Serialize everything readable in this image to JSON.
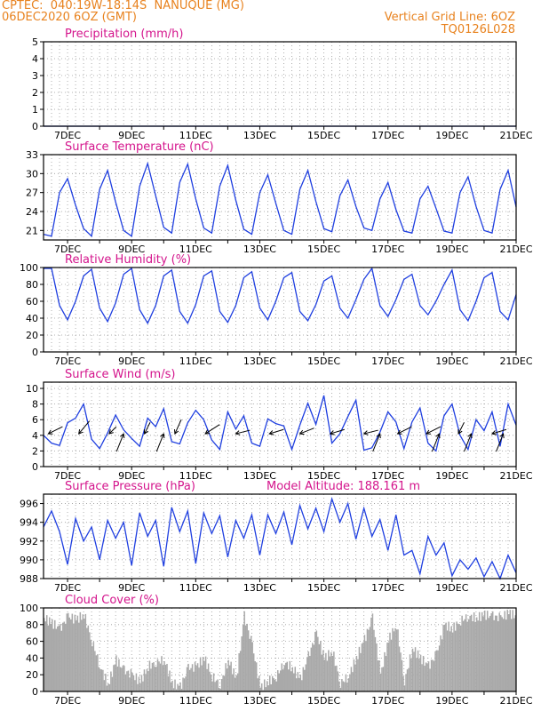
{
  "meta": {
    "header_color": "#e8821e",
    "title_color": "#d4148c",
    "series_color": "#1f3fe0",
    "cloud_color": "#a9a9a9",
    "wind_arrow_color": "#000000",
    "grid_color": "#9a9a9a"
  },
  "header": {
    "line1": "CPTEC:  040:19W-18:14S  NANUQUE (MG)",
    "line2": "06DEC2020 6OZ (GMT)",
    "grid_note": "Vertical Grid Line: 6OZ",
    "code": "TQ0126L028"
  },
  "x_axis": {
    "ticks": [
      "7DEC",
      "9DEC",
      "11DEC",
      "13DEC",
      "15DEC",
      "17DEC",
      "19DEC",
      "21DEC"
    ]
  },
  "chart_data": [
    {
      "type": "line",
      "title": "Precipitation (mm/h)",
      "ylim": [
        0,
        5
      ],
      "yticks": [
        0,
        1,
        2,
        3,
        4,
        5
      ],
      "grid": true,
      "x": [
        6.25,
        21.0
      ],
      "series": [
        {
          "values": [
            0,
            0
          ]
        }
      ]
    },
    {
      "type": "line",
      "title": "Surface Temperature (nC)",
      "ylim": [
        19.5,
        33
      ],
      "yticks": [
        21,
        24,
        27,
        30,
        33
      ],
      "grid": true,
      "x": [
        6.25,
        6.5,
        6.75,
        7.0,
        7.25,
        7.5,
        7.75,
        8.0,
        8.25,
        8.5,
        8.75,
        9.0,
        9.25,
        9.5,
        9.75,
        10.0,
        10.25,
        10.5,
        10.75,
        11.0,
        11.25,
        11.5,
        11.75,
        12.0,
        12.25,
        12.5,
        12.75,
        13.0,
        13.25,
        13.5,
        13.75,
        14.0,
        14.25,
        14.5,
        14.75,
        15.0,
        15.25,
        15.5,
        15.75,
        16.0,
        16.25,
        16.5,
        16.75,
        17.0,
        17.25,
        17.5,
        17.75,
        18.0,
        18.25,
        18.5,
        18.75,
        19.0,
        19.25,
        19.5,
        19.75,
        20.0,
        20.25,
        20.5,
        20.75,
        21.0
      ],
      "series": [
        {
          "values": [
            20.4,
            20.1,
            27.0,
            29.2,
            25.0,
            21.3,
            20.1,
            27.5,
            30.5,
            25.5,
            21.0,
            20.1,
            28.0,
            31.6,
            26.5,
            21.5,
            20.6,
            28.6,
            31.5,
            26.0,
            21.4,
            20.6,
            28.0,
            31.3,
            25.8,
            21.2,
            20.4,
            27.0,
            29.8,
            25.3,
            21.0,
            20.4,
            27.5,
            30.5,
            25.6,
            21.3,
            20.8,
            26.5,
            29.0,
            24.8,
            21.4,
            21.0,
            26.0,
            28.6,
            24.3,
            20.9,
            20.6,
            26.0,
            28.0,
            24.5,
            20.9,
            20.6,
            27.0,
            29.5,
            24.8,
            21.0,
            20.6,
            27.5,
            30.5,
            24.7
          ]
        }
      ]
    },
    {
      "type": "line",
      "title": "Relative Humidity (%)",
      "ylim": [
        0,
        100
      ],
      "yticks": [
        0,
        20,
        40,
        60,
        80,
        100
      ],
      "grid": true,
      "x": [
        6.25,
        6.5,
        6.75,
        7.0,
        7.25,
        7.5,
        7.75,
        8.0,
        8.25,
        8.5,
        8.75,
        9.0,
        9.25,
        9.5,
        9.75,
        10.0,
        10.25,
        10.5,
        10.75,
        11.0,
        11.25,
        11.5,
        11.75,
        12.0,
        12.25,
        12.5,
        12.75,
        13.0,
        13.25,
        13.5,
        13.75,
        14.0,
        14.25,
        14.5,
        14.75,
        15.0,
        15.25,
        15.5,
        15.75,
        16.0,
        16.25,
        16.5,
        16.75,
        17.0,
        17.25,
        17.5,
        17.75,
        18.0,
        18.25,
        18.5,
        18.75,
        19.0,
        19.25,
        19.5,
        19.75,
        20.0,
        20.25,
        20.5,
        20.75,
        21.0
      ],
      "series": [
        {
          "values": [
            99,
            99,
            55,
            38,
            60,
            90,
            98,
            52,
            36,
            58,
            92,
            99,
            50,
            34,
            55,
            90,
            97,
            48,
            34,
            56,
            90,
            96,
            48,
            35,
            55,
            88,
            95,
            52,
            38,
            60,
            88,
            94,
            48,
            37,
            56,
            84,
            90,
            52,
            40,
            62,
            86,
            99,
            55,
            42,
            62,
            86,
            92,
            55,
            44,
            60,
            80,
            97,
            50,
            37,
            60,
            88,
            94,
            48,
            38,
            68
          ]
        }
      ]
    },
    {
      "type": "line",
      "title": "Surface Wind (m/s)",
      "ylim": [
        0,
        10.8
      ],
      "yticks": [
        0,
        2,
        4,
        6,
        8,
        10
      ],
      "grid": true,
      "x": [
        6.25,
        6.5,
        6.75,
        7.0,
        7.25,
        7.5,
        7.75,
        8.0,
        8.25,
        8.5,
        8.75,
        9.0,
        9.25,
        9.5,
        9.75,
        10.0,
        10.25,
        10.5,
        10.75,
        11.0,
        11.25,
        11.5,
        11.75,
        12.0,
        12.25,
        12.5,
        12.75,
        13.0,
        13.25,
        13.5,
        13.75,
        14.0,
        14.25,
        14.5,
        14.75,
        15.0,
        15.25,
        15.5,
        15.75,
        16.0,
        16.25,
        16.5,
        16.75,
        17.0,
        17.25,
        17.5,
        17.75,
        18.0,
        18.25,
        18.5,
        18.75,
        19.0,
        19.25,
        19.5,
        19.75,
        20.0,
        20.25,
        20.5,
        20.75,
        21.0
      ],
      "series": [
        {
          "values": [
            4.0,
            3.0,
            2.7,
            5.6,
            6.2,
            8.0,
            3.5,
            2.3,
            4.3,
            6.6,
            4.7,
            3.6,
            2.6,
            6.2,
            5.1,
            7.4,
            3.2,
            2.9,
            5.6,
            7.2,
            6.0,
            3.4,
            2.2,
            7.0,
            4.8,
            6.5,
            3.0,
            2.6,
            6.1,
            5.5,
            5.2,
            2.2,
            5.3,
            8.1,
            5.4,
            9.1,
            3.0,
            4.2,
            6.4,
            8.5,
            2.1,
            2.4,
            4.4,
            7.0,
            5.7,
            2.3,
            5.7,
            7.5,
            3.0,
            2.0,
            6.5,
            8.0,
            4.0,
            2.2,
            6.0,
            4.6,
            7.0,
            2.6,
            8.0,
            5.3
          ]
        }
      ],
      "arrows": [
        {
          "x": 6.4,
          "u": 2.0,
          "v": 1.0
        },
        {
          "x": 7.35,
          "u": 1.5,
          "v": 1.8
        },
        {
          "x": 8.3,
          "u": 1.0,
          "v": 1.0
        },
        {
          "x": 8.75,
          "u": -1.0,
          "v": -2.5
        },
        {
          "x": 9.4,
          "u": 0.8,
          "v": 1.6
        },
        {
          "x": 10.0,
          "u": -1.0,
          "v": -2.5
        },
        {
          "x": 10.35,
          "u": 0.9,
          "v": 2.0
        },
        {
          "x": 11.3,
          "u": 2.0,
          "v": 1.3
        },
        {
          "x": 12.25,
          "u": 2.0,
          "v": 0.5
        },
        {
          "x": 13.3,
          "u": 2.0,
          "v": 0.6
        },
        {
          "x": 14.25,
          "u": 2.0,
          "v": 0.8
        },
        {
          "x": 15.2,
          "u": 2.0,
          "v": 0.6
        },
        {
          "x": 16.25,
          "u": 2.0,
          "v": 0.5
        },
        {
          "x": 16.75,
          "u": -1.0,
          "v": -2.5
        },
        {
          "x": 17.3,
          "u": 2.0,
          "v": 1.0
        },
        {
          "x": 18.2,
          "u": 2.0,
          "v": 1.0
        },
        {
          "x": 18.6,
          "u": -1.0,
          "v": -2.5
        },
        {
          "x": 19.2,
          "u": 0.8,
          "v": 1.6
        },
        {
          "x": 19.6,
          "u": -1.0,
          "v": -2.5
        },
        {
          "x": 20.25,
          "u": 2.0,
          "v": 0.6
        },
        {
          "x": 20.6,
          "u": -1.0,
          "v": -2.5
        }
      ]
    },
    {
      "type": "line",
      "title": "Surface Pressure (hPa)",
      "annotation": "Model Altitude: 188.161 m",
      "ylim": [
        988,
        997
      ],
      "yticks": [
        988,
        990,
        992,
        994,
        996
      ],
      "grid": true,
      "x": [
        6.25,
        6.5,
        6.75,
        7.0,
        7.25,
        7.5,
        7.75,
        8.0,
        8.25,
        8.5,
        8.75,
        9.0,
        9.25,
        9.5,
        9.75,
        10.0,
        10.25,
        10.5,
        10.75,
        11.0,
        11.25,
        11.5,
        11.75,
        12.0,
        12.25,
        12.5,
        12.75,
        13.0,
        13.25,
        13.5,
        13.75,
        14.0,
        14.25,
        14.5,
        14.75,
        15.0,
        15.25,
        15.5,
        15.75,
        16.0,
        16.25,
        16.5,
        16.75,
        17.0,
        17.25,
        17.5,
        17.75,
        18.0,
        18.25,
        18.5,
        18.75,
        19.0,
        19.25,
        19.5,
        19.75,
        20.0,
        20.25,
        20.5,
        20.75,
        21.0
      ],
      "series": [
        {
          "values": [
            993.5,
            995.2,
            993.0,
            989.5,
            994.4,
            992.0,
            993.5,
            990.0,
            994.2,
            992.3,
            994.0,
            989.4,
            995.0,
            992.5,
            994.2,
            989.3,
            995.6,
            993.0,
            995.2,
            989.6,
            995.0,
            992.8,
            994.7,
            990.3,
            994.2,
            992.3,
            994.8,
            990.5,
            994.8,
            992.8,
            995.1,
            991.6,
            995.8,
            993.3,
            995.5,
            993.0,
            996.5,
            994.0,
            996.0,
            992.2,
            995.5,
            992.5,
            994.3,
            991.0,
            994.8,
            990.5,
            991.0,
            988.5,
            992.5,
            990.5,
            991.8,
            988.3,
            990.0,
            989.0,
            990.2,
            988.2,
            989.8,
            988.0,
            990.5,
            988.6
          ]
        }
      ]
    },
    {
      "type": "bar",
      "title": "Cloud Cover (%)",
      "ylim": [
        0,
        100
      ],
      "yticks": [
        0,
        20,
        40,
        60,
        80,
        100
      ],
      "grid": true,
      "x": [
        6.25,
        6.5,
        6.75,
        7.0,
        7.25,
        7.5,
        7.75,
        8.0,
        8.25,
        8.5,
        8.75,
        9.0,
        9.25,
        9.5,
        9.75,
        10.0,
        10.25,
        10.5,
        10.75,
        11.0,
        11.25,
        11.5,
        11.75,
        12.0,
        12.25,
        12.5,
        12.75,
        13.0,
        13.25,
        13.5,
        13.75,
        14.0,
        14.25,
        14.5,
        14.75,
        15.0,
        15.25,
        15.5,
        15.75,
        16.0,
        16.25,
        16.5,
        16.75,
        17.0,
        17.25,
        17.5,
        17.75,
        18.0,
        18.25,
        18.5,
        18.75,
        19.0,
        19.25,
        19.5,
        19.75,
        20.0,
        20.25,
        20.5,
        20.75,
        21.0
      ],
      "values": [
        88,
        82,
        75,
        90,
        86,
        92,
        60,
        30,
        8,
        38,
        25,
        20,
        12,
        30,
        35,
        38,
        10,
        5,
        28,
        30,
        40,
        18,
        8,
        38,
        15,
        90,
        55,
        5,
        12,
        18,
        35,
        28,
        15,
        42,
        70,
        40,
        48,
        10,
        18,
        40,
        62,
        88,
        20,
        62,
        80,
        12,
        52,
        40,
        30,
        45,
        80,
        75,
        85,
        90,
        88,
        92,
        90,
        88,
        94,
        90
      ]
    }
  ]
}
